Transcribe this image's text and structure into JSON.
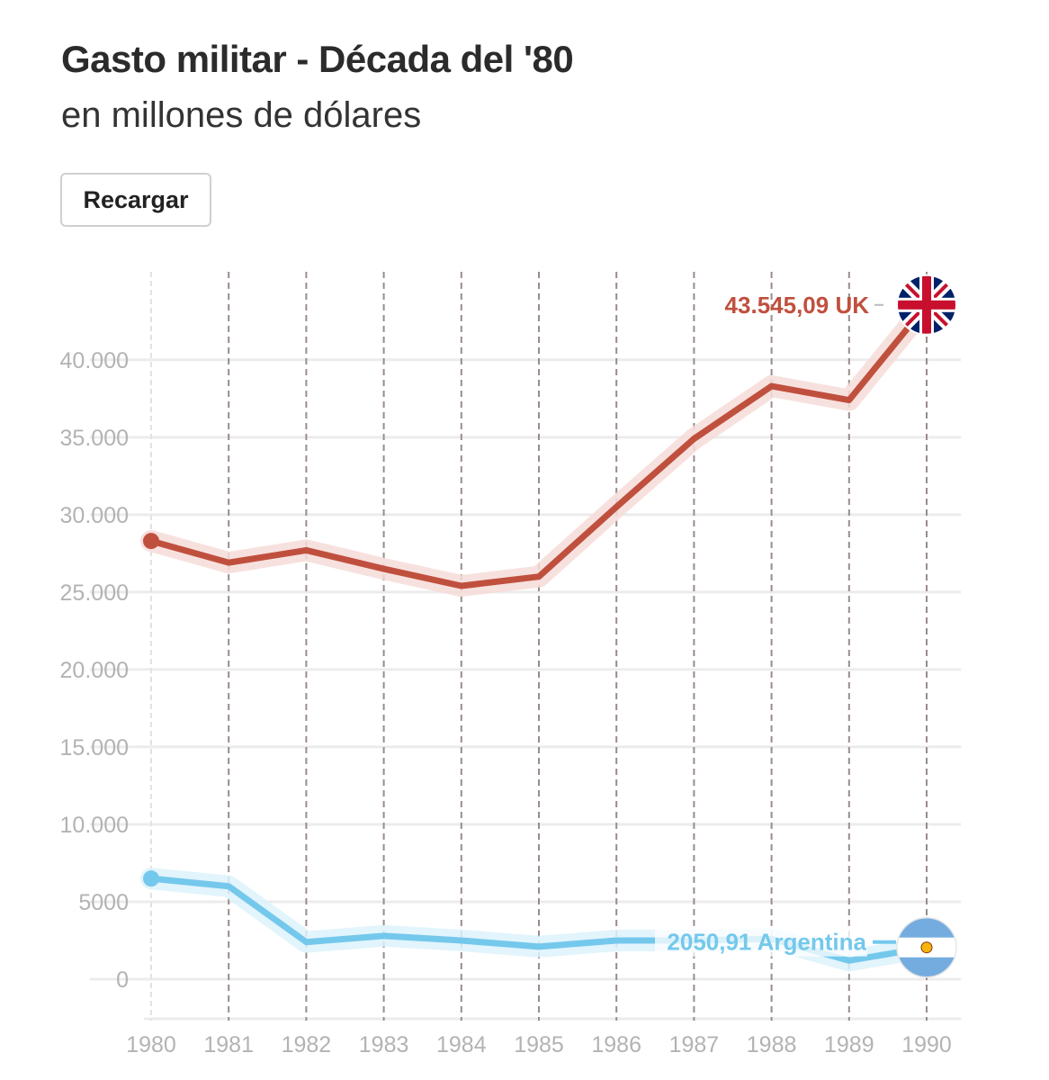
{
  "header": {
    "title": "Gasto militar - Década del '80",
    "subtitle": "en millones de dólares",
    "reload_label": "Recargar"
  },
  "chart_data": {
    "type": "line",
    "title": "Gasto militar - Década del '80",
    "subtitle": "en millones de dólares",
    "x": [
      1980,
      1981,
      1982,
      1983,
      1984,
      1985,
      1986,
      1987,
      1988,
      1989,
      1990
    ],
    "x_tick_labels": [
      "1980",
      "1981",
      "1982",
      "1983",
      "1984",
      "1985",
      "1986",
      "1987",
      "1988",
      "1989",
      "1990"
    ],
    "y_ticks": [
      0,
      5000,
      10000,
      15000,
      20000,
      25000,
      30000,
      35000,
      40000
    ],
    "y_tick_labels": [
      "0",
      "5000",
      "10.000",
      "15.000",
      "20.000",
      "25.000",
      "30.000",
      "35.000",
      "40.000"
    ],
    "ylim": [
      -2000,
      47000
    ],
    "xlabel": "",
    "ylabel": "",
    "grid": true,
    "series": [
      {
        "name": "UK",
        "color": "#c0503e",
        "glow": "#f6dcd8",
        "icon": "uk-flag-icon",
        "values": [
          28300,
          26900,
          27700,
          26500,
          25400,
          26000,
          30500,
          34900,
          38300,
          37400,
          43545.09
        ],
        "end_label": "43.545,09 UK"
      },
      {
        "name": "Argentina",
        "color": "#74c8ec",
        "glow": "#ddf2fb",
        "icon": "argentina-flag-icon",
        "values": [
          6500,
          6000,
          2400,
          2800,
          2500,
          2100,
          2500,
          2500,
          2600,
          1200,
          2050.91
        ],
        "end_label": "2050,91 Argentina"
      }
    ]
  }
}
